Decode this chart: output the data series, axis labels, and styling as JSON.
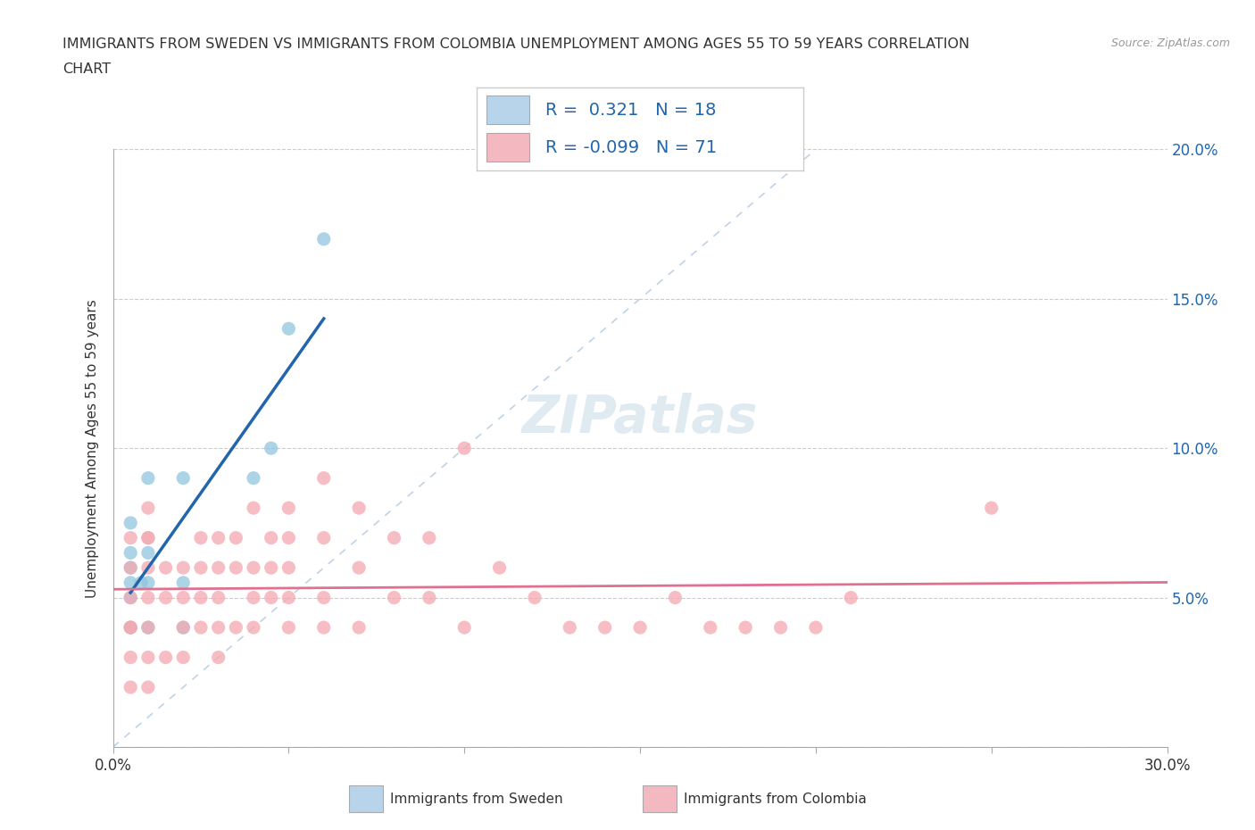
{
  "title_line1": "IMMIGRANTS FROM SWEDEN VS IMMIGRANTS FROM COLOMBIA UNEMPLOYMENT AMONG AGES 55 TO 59 YEARS CORRELATION",
  "title_line2": "CHART",
  "source": "Source: ZipAtlas.com",
  "ylabel": "Unemployment Among Ages 55 to 59 years",
  "xlim": [
    0.0,
    0.3
  ],
  "ylim": [
    0.0,
    0.2
  ],
  "x_ticks": [
    0.0,
    0.05,
    0.1,
    0.15,
    0.2,
    0.25,
    0.3
  ],
  "y_ticks": [
    0.0,
    0.05,
    0.1,
    0.15,
    0.2
  ],
  "sweden_R": "0.321",
  "sweden_N": "18",
  "colombia_R": "-0.099",
  "colombia_N": "71",
  "sweden_color": "#92c5de",
  "colombia_color": "#f4a9b0",
  "sweden_line_color": "#2166ac",
  "colombia_line_color": "#e07090",
  "diag_line_color": "#b0c8e0",
  "background_color": "#ffffff",
  "legend_bg_sweden": "#b8d4ea",
  "legend_bg_colombia": "#f4b8c0",
  "right_tick_color": "#2166ac",
  "sweden_scatter_x": [
    0.005,
    0.005,
    0.005,
    0.005,
    0.005,
    0.005,
    0.008,
    0.01,
    0.01,
    0.01,
    0.01,
    0.02,
    0.02,
    0.02,
    0.04,
    0.045,
    0.05,
    0.06
  ],
  "sweden_scatter_y": [
    0.04,
    0.05,
    0.055,
    0.06,
    0.065,
    0.075,
    0.055,
    0.04,
    0.055,
    0.065,
    0.09,
    0.04,
    0.055,
    0.09,
    0.09,
    0.1,
    0.14,
    0.17
  ],
  "colombia_scatter_x": [
    0.005,
    0.005,
    0.005,
    0.005,
    0.005,
    0.005,
    0.005,
    0.01,
    0.01,
    0.01,
    0.01,
    0.01,
    0.01,
    0.01,
    0.01,
    0.015,
    0.015,
    0.015,
    0.02,
    0.02,
    0.02,
    0.02,
    0.025,
    0.025,
    0.025,
    0.025,
    0.03,
    0.03,
    0.03,
    0.03,
    0.03,
    0.035,
    0.035,
    0.035,
    0.04,
    0.04,
    0.04,
    0.04,
    0.045,
    0.045,
    0.045,
    0.05,
    0.05,
    0.05,
    0.05,
    0.05,
    0.06,
    0.06,
    0.06,
    0.06,
    0.07,
    0.07,
    0.07,
    0.08,
    0.08,
    0.09,
    0.09,
    0.1,
    0.1,
    0.11,
    0.12,
    0.13,
    0.14,
    0.15,
    0.16,
    0.17,
    0.18,
    0.19,
    0.2,
    0.21,
    0.25
  ],
  "colombia_scatter_y": [
    0.02,
    0.03,
    0.04,
    0.04,
    0.05,
    0.06,
    0.07,
    0.02,
    0.03,
    0.04,
    0.05,
    0.06,
    0.07,
    0.07,
    0.08,
    0.03,
    0.05,
    0.06,
    0.03,
    0.04,
    0.05,
    0.06,
    0.04,
    0.05,
    0.06,
    0.07,
    0.03,
    0.04,
    0.05,
    0.06,
    0.07,
    0.04,
    0.06,
    0.07,
    0.04,
    0.05,
    0.06,
    0.08,
    0.05,
    0.06,
    0.07,
    0.04,
    0.05,
    0.06,
    0.07,
    0.08,
    0.04,
    0.05,
    0.07,
    0.09,
    0.04,
    0.06,
    0.08,
    0.05,
    0.07,
    0.05,
    0.07,
    0.04,
    0.1,
    0.06,
    0.05,
    0.04,
    0.04,
    0.04,
    0.05,
    0.04,
    0.04,
    0.04,
    0.04,
    0.05,
    0.08
  ]
}
